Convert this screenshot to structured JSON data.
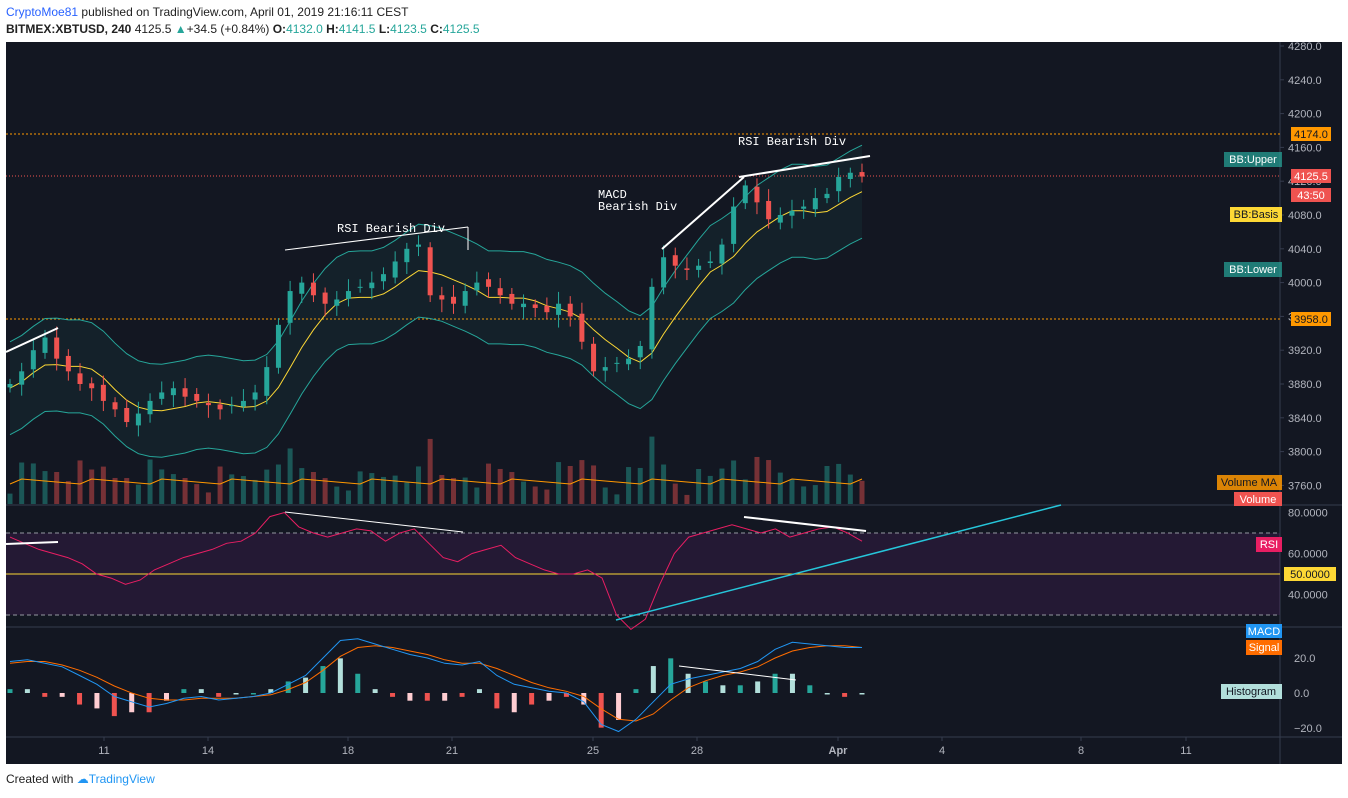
{
  "header": {
    "author": "CryptoMoe81",
    "published_text": "published on TradingView.com, April 01, 2019 21:16:11 CEST",
    "symbol": "BITMEX:XBTUSD, 240",
    "last": "4125.5",
    "change_arrow": "▲",
    "change": "+34.5 (+0.84%)",
    "o_label": "O:",
    "o_val": "4132.0",
    "h_label": "H:",
    "h_val": "4141.5",
    "l_label": "L:",
    "l_val": "4123.5",
    "c_label": "C:",
    "c_val": "4125.5"
  },
  "footer": {
    "created_with": "Created with",
    "brand": "TradingView"
  },
  "price_axis": {
    "ticks": [
      "4280.0",
      "4240.0",
      "4200.0",
      "4160.0",
      "4120.0",
      "4080.0",
      "4040.0",
      "4000.0",
      "3960.0",
      "3920.0",
      "3880.0",
      "3840.0",
      "3800.0",
      "3760.0"
    ],
    "tick_values": [
      4280,
      4240,
      4200,
      4160,
      4120,
      4080,
      4040,
      4000,
      3960,
      3920,
      3880,
      3840,
      3800,
      3760
    ],
    "badge_4174": "4174.0",
    "badge_last": "4125.5",
    "badge_countdown": "43:50",
    "badge_3958": "3958.0",
    "bb_upper": "BB:Upper",
    "bb_basis": "BB:Basis",
    "bb_lower": "BB:Lower",
    "volume_ma": "Volume MA",
    "volume": "Volume"
  },
  "rsi_axis": {
    "ticks": [
      "80.0000",
      "60.0000",
      "40.0000"
    ],
    "tick_values": [
      80,
      60,
      40
    ],
    "label": "RSI",
    "badge": "50.0000"
  },
  "macd_axis": {
    "ticks": [
      "20.0",
      "0.0",
      "−20.0"
    ],
    "tick_values": [
      20,
      0,
      -20
    ],
    "macd": "MACD",
    "signal": "Signal",
    "histogram": "Histogram"
  },
  "time_axis": {
    "labels": [
      "11",
      "14",
      "18",
      "21",
      "25",
      "28",
      "Apr",
      "4",
      "8",
      "11"
    ]
  },
  "annotations": {
    "rsi_div_1": "RSI Bearish Div",
    "macd_div_1": "MACD",
    "macd_div_2": "Bearish Div",
    "rsi_div_2": "RSI Bearish Div"
  },
  "colors": {
    "background": "#131722",
    "up": "#26a69a",
    "down": "#ef5350",
    "bb_band": "#26a69a",
    "bb_basis": "#fdd835",
    "rsi": "#e91e63",
    "macd": "#2196f3",
    "signal": "#ff6d00",
    "level_line": "#ff9800"
  },
  "chart_data": {
    "type": "candlestick",
    "symbol": "BITMEX:XBTUSD",
    "interval": "240",
    "price_levels": [
      4174.0,
      3958.0
    ],
    "last_price": 4125.5,
    "ylim_price": [
      3740,
      4290
    ],
    "ylim_rsi": [
      20,
      85
    ],
    "ylim_macd": [
      -25,
      35
    ],
    "rsi_levels": [
      70,
      50,
      30
    ],
    "price_path": [
      3880,
      3895,
      3920,
      3935,
      3910,
      3895,
      3880,
      3875,
      3860,
      3850,
      3835,
      3845,
      3860,
      3870,
      3875,
      3865,
      3860,
      3855,
      3850,
      3855,
      3860,
      3870,
      3900,
      3950,
      3990,
      4000,
      3985,
      3975,
      3980,
      3990,
      3995,
      4000,
      4010,
      4025,
      4040,
      4045,
      3985,
      3980,
      3975,
      3990,
      4000,
      3995,
      3985,
      3975,
      3975,
      3970,
      3965,
      3975,
      3960,
      3930,
      3895,
      3900,
      3905,
      3910,
      3925,
      3995,
      4030,
      4020,
      4015,
      4020,
      4025,
      4045,
      4090,
      4115,
      4095,
      4075,
      4080,
      4085,
      4090,
      4100,
      4105,
      4125,
      4130,
      4125.5
    ],
    "rsi_path": [
      68,
      65,
      62,
      60,
      58,
      55,
      50,
      48,
      45,
      47,
      52,
      55,
      58,
      60,
      62,
      65,
      66,
      70,
      78,
      80,
      73,
      70,
      68,
      70,
      72,
      71,
      66,
      70,
      72,
      65,
      58,
      56,
      60,
      62,
      64,
      58,
      55,
      52,
      50,
      50,
      52,
      48,
      30,
      23,
      28,
      45,
      60,
      68,
      70,
      72,
      74,
      72,
      70,
      72,
      68,
      70,
      72,
      73,
      70,
      66
    ],
    "macd_path": [
      18,
      19,
      17,
      15,
      10,
      5,
      -2,
      -5,
      -8,
      -6,
      -3,
      -2,
      -4,
      -3,
      -2,
      0,
      5,
      10,
      20,
      30,
      31,
      28,
      25,
      22,
      20,
      17,
      16,
      18,
      10,
      5,
      3,
      1,
      0,
      -5,
      -18,
      -22,
      -15,
      -5,
      5,
      8,
      10,
      12,
      14,
      18,
      25,
      29,
      28,
      27,
      26,
      26
    ],
    "signal_path": [
      17,
      18,
      18,
      16,
      13,
      9,
      4,
      0,
      -3,
      -4,
      -4,
      -3,
      -3,
      -3,
      -2,
      -1,
      2,
      6,
      13,
      21,
      26,
      27,
      26,
      24,
      22,
      19,
      17,
      17,
      14,
      10,
      6,
      3,
      1,
      -2,
      -9,
      -15,
      -16,
      -12,
      -4,
      3,
      7,
      10,
      12,
      15,
      20,
      24,
      26,
      27,
      27,
      26
    ]
  }
}
